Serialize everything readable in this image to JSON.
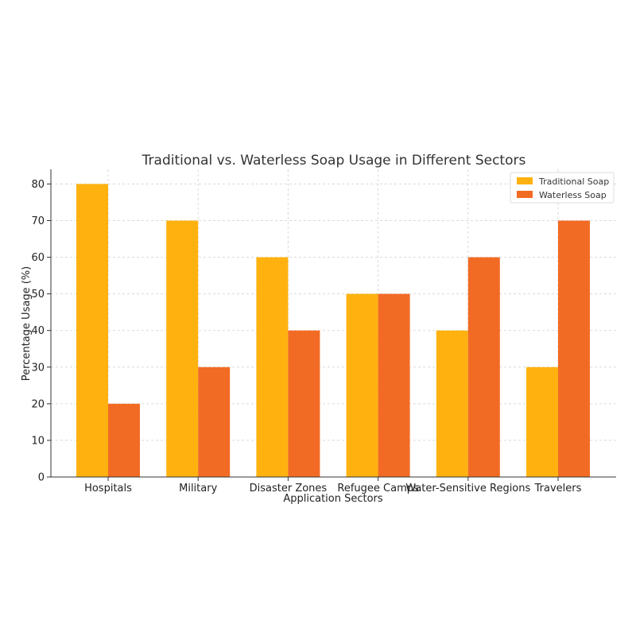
{
  "chart_data": {
    "type": "bar",
    "title": "Traditional vs. Waterless Soap Usage in Different Sectors",
    "xlabel": "Application Sectors",
    "ylabel": "Percentage Usage (%)",
    "categories": [
      "Hospitals",
      "Military",
      "Disaster Zones",
      "Refugee Camps",
      "Water-Sensitive Regions",
      "Travelers"
    ],
    "series": [
      {
        "name": "Traditional Soap",
        "color": "#FFB20F",
        "values": [
          80,
          70,
          60,
          50,
          40,
          30
        ]
      },
      {
        "name": "Waterless Soap",
        "color": "#F26B24",
        "values": [
          20,
          30,
          40,
          50,
          60,
          70
        ]
      }
    ],
    "ylim": [
      0,
      84
    ],
    "yticks": [
      0,
      10,
      20,
      30,
      40,
      50,
      60,
      70,
      80
    ],
    "grid": true,
    "legend_position": "top-right"
  }
}
